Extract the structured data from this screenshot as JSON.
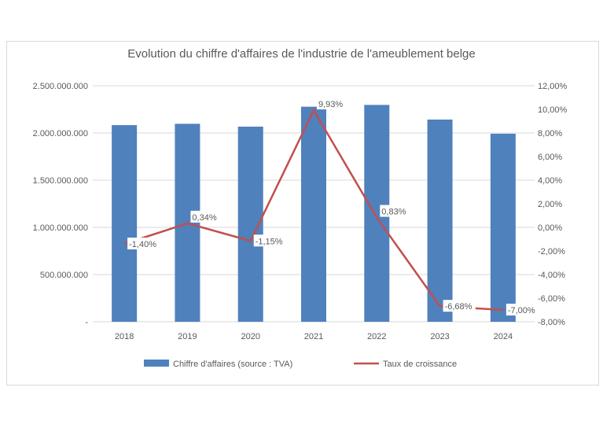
{
  "chart_data": {
    "type": "bar+line",
    "title": "Evolution du chiffre d'affaires de l'industrie de l'ameublement belge",
    "categories": [
      "2018",
      "2019",
      "2020",
      "2021",
      "2022",
      "2023",
      "2024"
    ],
    "series": [
      {
        "name": "Chiffre d'affaires (source : TVA)",
        "type": "bar",
        "axis": "left",
        "color": "#4f81bd",
        "values": [
          2083000000,
          2097000000,
          2067000000,
          2278000000,
          2297000000,
          2142000000,
          1992000000
        ]
      },
      {
        "name": "Taux de croissance",
        "type": "line",
        "axis": "right",
        "color": "#c0504d",
        "values": [
          -1.4,
          0.34,
          -1.15,
          9.93,
          0.83,
          -6.68,
          -7.0
        ],
        "labels": [
          "-1,40%",
          "0,34%",
          "-1,15%",
          "9,93%",
          "0,83%",
          "-6,68%",
          "-7,00%"
        ]
      }
    ],
    "y_left": {
      "range": [
        0,
        2500000000
      ],
      "ticks": [
        "-",
        "500.000.000",
        "1.000.000.000",
        "1.500.000.000",
        "2.000.000.000",
        "2.500.000.000"
      ]
    },
    "y_right": {
      "range": [
        -8,
        12
      ],
      "ticks": [
        "-8,00%",
        "-6,00%",
        "-4,00%",
        "-2,00%",
        "0,00%",
        "2,00%",
        "4,00%",
        "6,00%",
        "8,00%",
        "10,00%",
        "12,00%"
      ]
    },
    "grid": true,
    "legend": "bottom"
  }
}
